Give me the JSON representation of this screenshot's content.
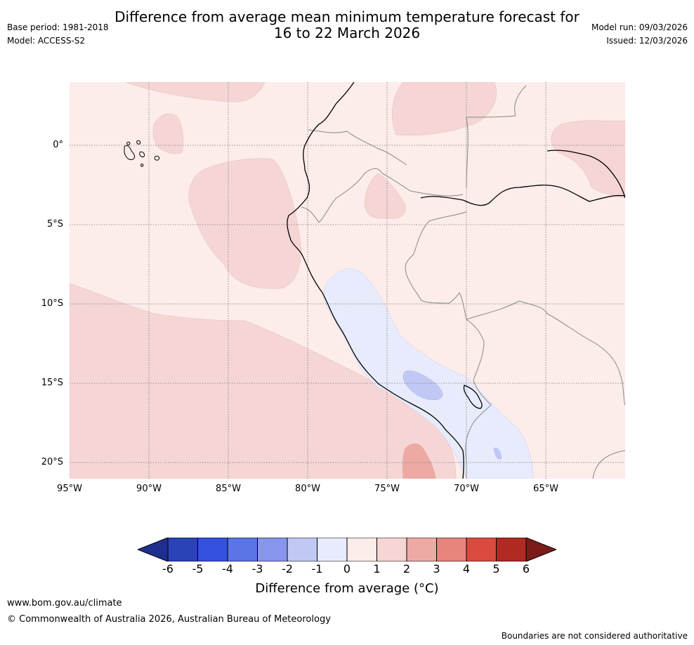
{
  "header": {
    "title_line1": "Difference from average mean minimum temperature forecast for",
    "title_line2": "16 to 22 March 2026",
    "base_period": "Base period: 1981-2018",
    "model": "Model: ACCESS-S2",
    "model_run": "Model run: 09/03/2026",
    "issued": "Issued: 12/03/2026"
  },
  "map": {
    "region": "Western South America (Peru, Ecuador, Galapagos)",
    "lat_labels": [
      "0°",
      "5°S",
      "10°S",
      "15°S",
      "20°S"
    ],
    "lon_labels": [
      "95°W",
      "90°W",
      "85°W",
      "80°W",
      "75°W",
      "70°W",
      "65°W"
    ]
  },
  "colorbar": {
    "ticks": [
      "-6",
      "-5",
      "-4",
      "-3",
      "-2",
      "-1",
      "0",
      "1",
      "2",
      "3",
      "4",
      "5",
      "6"
    ],
    "colors": [
      "#1f2f8f",
      "#2a44b8",
      "#3551e0",
      "#5b74e6",
      "#8795ec",
      "#c1c8f5",
      "#e8ebfb",
      "#fcecea",
      "#f5d6d4",
      "#edaaa5",
      "#e6847d",
      "#db4a3f",
      "#b02a22",
      "#7b1c18"
    ],
    "label": "Difference from average (°C)"
  },
  "footer": {
    "url": "www.bom.gov.au/climate",
    "copyright": "© Commonwealth of Australia 2026, Australian Bureau of Meteorology",
    "note": "Boundaries are not considered authoritative"
  }
}
